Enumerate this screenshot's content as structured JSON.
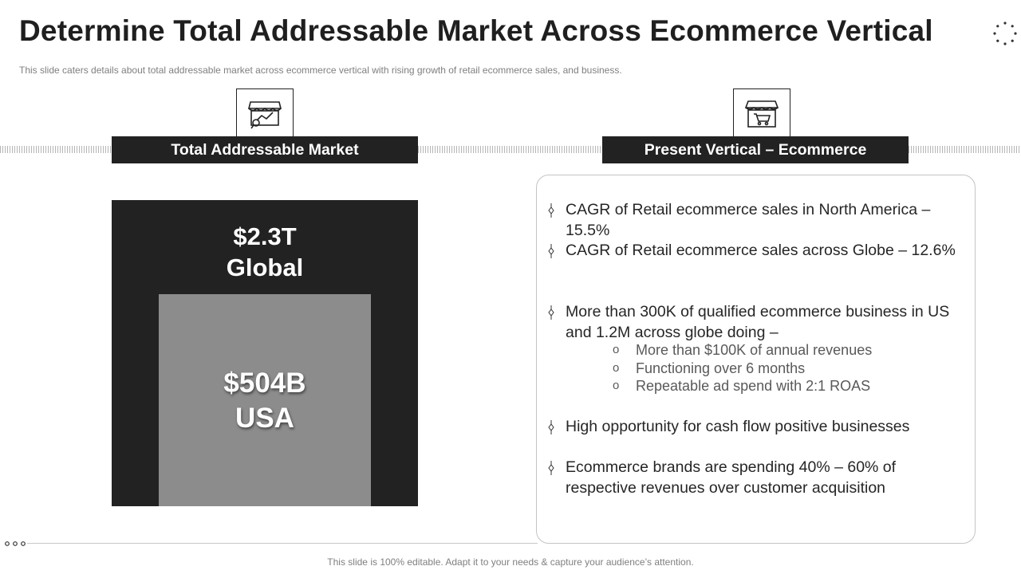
{
  "slide": {
    "title": "Determine Total Addressable Market Across Ecommerce Vertical",
    "subtitle": "This slide caters details about total addressable market across ecommerce vertical with rising growth of retail ecommerce sales, and business.",
    "footer": "This slide is 100% editable. Adapt it to your needs & capture your audience’s attention."
  },
  "left": {
    "icon": "store-analytics-icon",
    "header": "Total Addressable Market",
    "global_value": "$2.3T",
    "global_label": "Global",
    "usa_value": "$504B",
    "usa_label": "USA"
  },
  "right": {
    "icon": "store-cart-icon",
    "header": "Present Vertical – Ecommerce",
    "bullets": [
      {
        "text": "CAGR of Retail ecommerce sales in North America – 15.5%"
      },
      {
        "text": "CAGR of Retail ecommerce sales across Globe – 12.6%"
      },
      {
        "text": "More than 300K of qualified ecommerce business in US and 1.2M across globe doing –",
        "sub": [
          "More than $100K of annual revenues",
          "Functioning over 6 months",
          "Repeatable ad spend with 2:1 ROAS"
        ]
      },
      {
        "text": "High opportunity for cash flow positive businesses"
      },
      {
        "text": "Ecommerce brands are spending 40% – 60% of respective revenues over customer acquisition"
      }
    ],
    "sub_marker": "o"
  },
  "colors": {
    "dark": "#222222",
    "gray_box": "#8c8c8c",
    "text": "#262626",
    "muted": "#7f7f7f"
  }
}
